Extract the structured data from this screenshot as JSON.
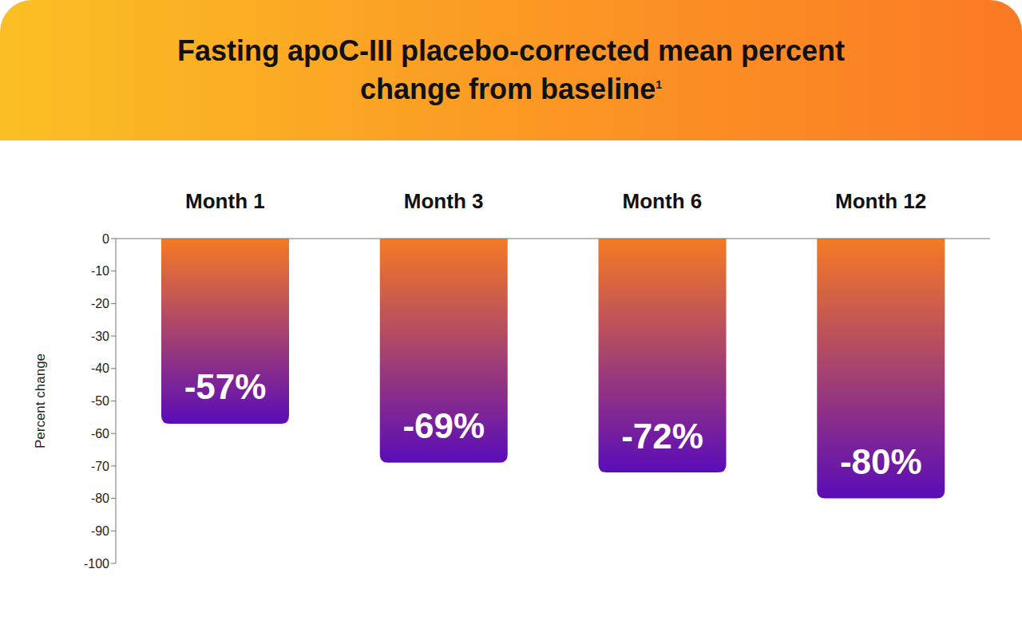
{
  "chart_data": {
    "type": "bar",
    "title": "Fasting apoC-III placebo-corrected mean percent change from baseline",
    "title_superscript": "1",
    "y_label": "Percent change",
    "categories": [
      "Month 1",
      "Month 3",
      "Month 6",
      "Month 12"
    ],
    "values": [
      -57,
      -69,
      -72,
      -80
    ],
    "value_labels": [
      "-57%",
      "-69%",
      "-72%",
      "-80%"
    ],
    "data_labels": true,
    "color": "#5a0cb8",
    "ylim": [
      -100,
      0
    ],
    "yticks": [
      0,
      -10,
      -20,
      -30,
      -40,
      -50,
      -60,
      -70,
      -80,
      -90,
      -100
    ],
    "grid": false
  }
}
